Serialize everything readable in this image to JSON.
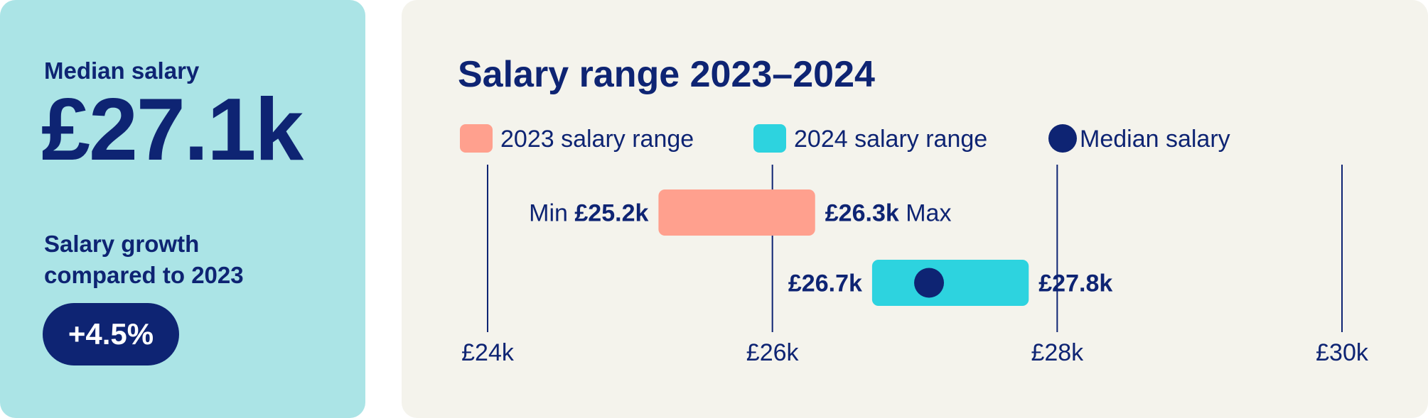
{
  "summary": {
    "median_label": "Median salary",
    "median_value": "£27.1k",
    "growth_label_line1": "Salary growth",
    "growth_label_line2": "compared to 2023",
    "growth_value": "+4.5%"
  },
  "chart_data": {
    "type": "range-bar",
    "title": "Salary range 2023–2024",
    "x_ticks": [
      24,
      26,
      28,
      30
    ],
    "x_tick_labels": [
      "£24k",
      "£26k",
      "£28k",
      "£30k"
    ],
    "xlim": [
      24,
      30
    ],
    "unit": "£k",
    "legend": [
      {
        "label": "2023 salary range",
        "color": "#ffa08e",
        "shape": "rounded-square"
      },
      {
        "label": "2024 salary range",
        "color": "#2dd3df",
        "shape": "rounded-square"
      },
      {
        "label": "Median salary",
        "color": "#0e2473",
        "shape": "circle"
      }
    ],
    "legend_placement": "top",
    "grid": true,
    "series": [
      {
        "name": "2023 salary range",
        "min": 25.2,
        "max": 26.3,
        "min_label": "£25.2k",
        "max_label": "£26.3k",
        "min_prefix": "Min",
        "max_suffix": "Max",
        "color": "#ffa08e"
      },
      {
        "name": "2024 salary range",
        "min": 26.7,
        "max": 27.8,
        "min_label": "£26.7k",
        "max_label": "£27.8k",
        "median": 27.1,
        "color": "#2dd3df"
      }
    ]
  }
}
